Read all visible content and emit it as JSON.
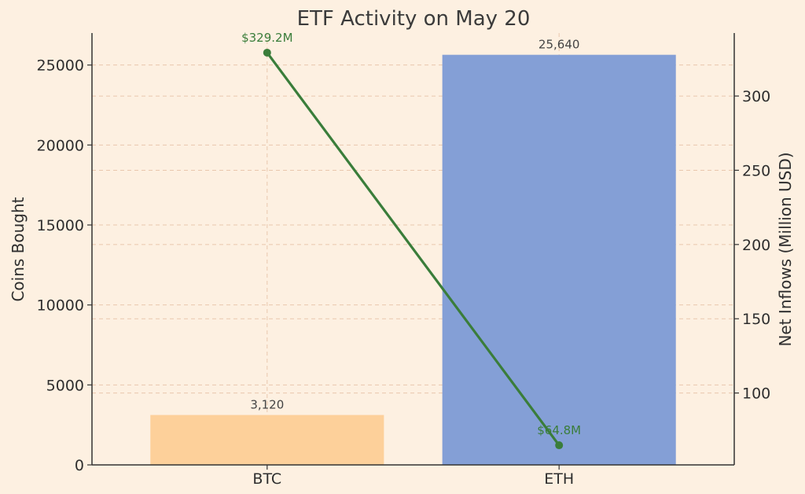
{
  "chart_data": {
    "type": "bar+line",
    "title": "ETF Activity on May 20",
    "categories": [
      "BTC",
      "ETH"
    ],
    "grid": true,
    "bars": {
      "name": "Coins Bought",
      "axis": "left",
      "values": [
        3120,
        25640
      ],
      "value_labels": [
        "3,120",
        "25,640"
      ],
      "colors": [
        "#fdd09a",
        "#849fd6"
      ]
    },
    "line": {
      "name": "Net Inflows",
      "axis": "right",
      "values": [
        329.2,
        64.8
      ],
      "value_labels": [
        "$329.2M",
        "$64.8M"
      ],
      "color": "#3a7d3a"
    },
    "y_left": {
      "label": "Coins Bought",
      "range": [
        0,
        27000
      ],
      "ticks": [
        0,
        5000,
        10000,
        15000,
        20000,
        25000
      ],
      "tick_labels": [
        "0",
        "5000",
        "10000",
        "15000",
        "20000",
        "25000"
      ]
    },
    "y_right": {
      "label": "Net Inflows (Million USD)",
      "label_color": "#3a7d3a",
      "range": [
        51.58,
        342.42
      ],
      "ticks": [
        100,
        150,
        200,
        250,
        300
      ],
      "tick_labels": [
        "100",
        "150",
        "200",
        "250",
        "300"
      ]
    }
  }
}
